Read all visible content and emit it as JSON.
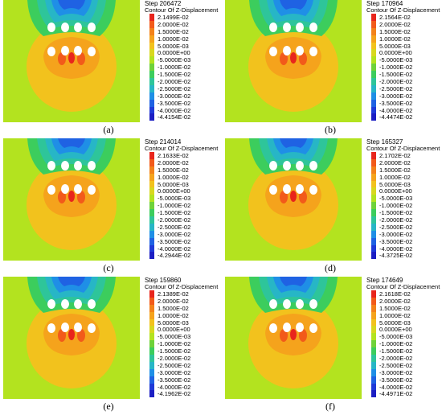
{
  "contour_title": "Contour Of Z-Displacement",
  "level_colors": [
    "#e8251c",
    "#f25a1a",
    "#f3821a",
    "#f5a31c",
    "#f2c21d",
    "#d8d81f",
    "#b3e31f",
    "#6ed23a",
    "#3ccd5d",
    "#2ec59a",
    "#27b6c6",
    "#1f8fe6",
    "#1f62e3",
    "#1f3ad8",
    "#1c1ec3"
  ],
  "panels": [
    {
      "caption": "(a)",
      "step": "Step 206472",
      "levels": [
        "2.1499E-02",
        "2.0000E-02",
        "1.5000E-02",
        "1.0000E-02",
        "5.0000E-03",
        "0.0000E+00",
        "-5.0000E-03",
        "-1.0000E-02",
        "-1.5000E-02",
        "-2.0000E-02",
        "-2.5000E-02",
        "-3.0000E-02",
        "-3.5000E-02",
        "-4.0000E-02",
        "-4.4154E-02"
      ]
    },
    {
      "caption": "(b)",
      "step": "Step 170964",
      "levels": [
        "2.1564E-02",
        "2.0000E-02",
        "1.5000E-02",
        "1.0000E-02",
        "5.0000E-03",
        "0.0000E+00",
        "-5.0000E-03",
        "-1.0000E-02",
        "-1.5000E-02",
        "-2.0000E-02",
        "-2.5000E-02",
        "-3.0000E-02",
        "-3.5000E-02",
        "-4.0000E-02",
        "-4.4474E-02"
      ]
    },
    {
      "caption": "(c)",
      "step": "Step 214014",
      "levels": [
        "2.1633E-02",
        "2.0000E-02",
        "1.5000E-02",
        "1.0000E-02",
        "5.0000E-03",
        "0.0000E+00",
        "-5.0000E-03",
        "-1.0000E-02",
        "-1.5000E-02",
        "-2.0000E-02",
        "-2.5000E-02",
        "-3.0000E-02",
        "-3.5000E-02",
        "-4.0000E-02",
        "-4.2944E-02"
      ]
    },
    {
      "caption": "(d)",
      "step": "Step 165327",
      "levels": [
        "2.1702E-02",
        "2.0000E-02",
        "1.5000E-02",
        "1.0000E-02",
        "5.0000E-03",
        "0.0000E+00",
        "-5.0000E-03",
        "-1.0000E-02",
        "-1.5000E-02",
        "-2.0000E-02",
        "-2.5000E-02",
        "-3.0000E-02",
        "-3.5000E-02",
        "-4.0000E-02",
        "-4.3725E-02"
      ]
    },
    {
      "caption": "(e)",
      "step": "Step 159860",
      "levels": [
        "2.1389E-02",
        "2.0000E-02",
        "1.5000E-02",
        "1.0000E-02",
        "5.0000E-03",
        "0.0000E+00",
        "-5.0000E-03",
        "-1.0000E-02",
        "-1.5000E-02",
        "-2.0000E-02",
        "-2.5000E-02",
        "-3.0000E-02",
        "-3.5000E-02",
        "-4.0000E-02",
        "-4.1962E-02"
      ]
    },
    {
      "caption": "(f)",
      "step": "Step 174649",
      "levels": [
        "2.1618E-02",
        "2.0000E-02",
        "1.5000E-02",
        "1.0000E-02",
        "5.0000E-03",
        "0.0000E+00",
        "-5.0000E-03",
        "-1.0000E-02",
        "-1.5000E-02",
        "-2.0000E-02",
        "-2.5000E-02",
        "-3.0000E-02",
        "-3.5000E-02",
        "-4.0000E-02",
        "-4.4971E-02"
      ]
    }
  ]
}
